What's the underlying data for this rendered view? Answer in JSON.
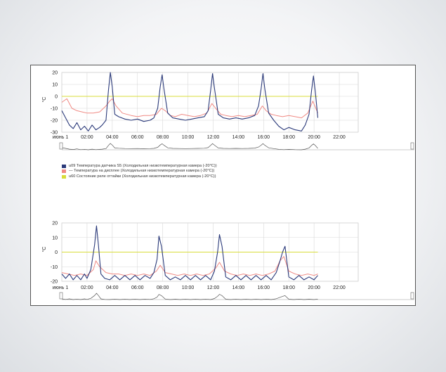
{
  "colors": {
    "sensor": "#2b3a7a",
    "display": "#f08a84",
    "relay": "#d8dc3a",
    "grid": "#d8d8d8",
    "nav": "#555555"
  },
  "legend": [
    {
      "key": "sensor",
      "label": "u09 Температура датчика S5 (Холодильная низкотемпературная камера (-20°C))"
    },
    {
      "key": "display",
      "label": "— Температура на дисплее (Холодильная низкотемпературная камера (-20°C))"
    },
    {
      "key": "relay",
      "label": "u60 Состояние реле оттайки (Холодильная низкотемпературная камера (-20°C))"
    }
  ],
  "chart_data": [
    {
      "type": "line",
      "ylabel": "°C",
      "ylim": [
        -30,
        20
      ],
      "yticks": [
        "20",
        "10",
        "0",
        "-10",
        "-20",
        "-30"
      ],
      "xlim": [
        0,
        23.5
      ],
      "xticks": [
        {
          "x": 0,
          "label": "июнь 1"
        },
        {
          "x": 2,
          "label": "02:00"
        },
        {
          "x": 4,
          "label": "04:00"
        },
        {
          "x": 6,
          "label": "06:00"
        },
        {
          "x": 8,
          "label": "08:00"
        },
        {
          "x": 10,
          "label": "10:00"
        },
        {
          "x": 12,
          "label": "12:00"
        },
        {
          "x": 14,
          "label": "14:00"
        },
        {
          "x": 16,
          "label": "16:00"
        },
        {
          "x": 18,
          "label": "18:00"
        },
        {
          "x": 20,
          "label": "20:00"
        },
        {
          "x": 22,
          "label": "22:00"
        }
      ],
      "series": [
        {
          "key": "sensor",
          "x": [
            0,
            0.3,
            0.6,
            0.9,
            1.2,
            1.5,
            1.8,
            2.1,
            2.4,
            2.7,
            3.0,
            3.2,
            3.5,
            3.7,
            3.85,
            4.0,
            4.2,
            4.5,
            5.0,
            5.5,
            6.0,
            6.5,
            7.0,
            7.3,
            7.6,
            7.8,
            7.95,
            8.1,
            8.4,
            8.8,
            9.3,
            9.8,
            10.3,
            10.8,
            11.3,
            11.6,
            11.8,
            11.95,
            12.1,
            12.4,
            12.8,
            13.3,
            13.8,
            14.3,
            14.8,
            15.3,
            15.6,
            15.8,
            15.95,
            16.1,
            16.4,
            16.8,
            17.2,
            17.6,
            18.0,
            18.5,
            19.0,
            19.3,
            19.6,
            19.8,
            19.95,
            20.1,
            20.3
          ],
          "y": [
            -12,
            -18,
            -24,
            -27,
            -22,
            -28,
            -25,
            -29,
            -24,
            -28,
            -26,
            -24,
            -20,
            5,
            20,
            8,
            -15,
            -17,
            -19,
            -20,
            -19,
            -21,
            -20,
            -18,
            -10,
            8,
            18,
            6,
            -14,
            -18,
            -19,
            -20,
            -19,
            -18,
            -17,
            -12,
            5,
            19,
            7,
            -15,
            -18,
            -19,
            -18,
            -19,
            -18,
            -16,
            -8,
            6,
            19,
            6,
            -14,
            -20,
            -25,
            -28,
            -26,
            -28,
            -29,
            -24,
            -15,
            5,
            17,
            4,
            -18
          ]
        },
        {
          "key": "display",
          "x": [
            0,
            0.4,
            0.8,
            1.2,
            1.6,
            2.0,
            2.5,
            3.0,
            3.5,
            3.8,
            4.0,
            4.3,
            4.8,
            5.5,
            6.0,
            6.5,
            7.0,
            7.5,
            7.9,
            8.2,
            8.6,
            9.0,
            9.5,
            10.0,
            10.5,
            11.0,
            11.5,
            11.9,
            12.2,
            12.6,
            13.0,
            13.5,
            14.0,
            14.5,
            15.0,
            15.5,
            15.9,
            16.2,
            16.6,
            17.0,
            17.5,
            18.0,
            18.5,
            19.0,
            19.5,
            19.9,
            20.3
          ],
          "y": [
            -5,
            -2,
            -10,
            -12,
            -13,
            -14,
            -14,
            -13,
            -8,
            -4,
            -2,
            -8,
            -14,
            -16,
            -17,
            -16,
            -16,
            -15,
            -10,
            -12,
            -16,
            -17,
            -15,
            -16,
            -17,
            -16,
            -14,
            -6,
            -10,
            -15,
            -16,
            -17,
            -16,
            -17,
            -16,
            -15,
            -8,
            -12,
            -15,
            -16,
            -17,
            -16,
            -17,
            -18,
            -14,
            -4,
            -14
          ]
        },
        {
          "key": "relay",
          "x": [
            0,
            3.5,
            4.1,
            7.5,
            8.1,
            11.5,
            12.1,
            15.5,
            16.1,
            19.5,
            20.1,
            20.3
          ],
          "y": [
            0,
            0,
            0,
            0,
            0,
            0,
            0,
            0,
            0,
            0,
            0,
            0
          ]
        }
      ]
    },
    {
      "type": "line",
      "ylabel": "°C",
      "ylim": [
        -20,
        20
      ],
      "yticks": [
        "20",
        "10",
        "0",
        "-10",
        "-20"
      ],
      "xlim": [
        0,
        23.5
      ],
      "xticks": [
        {
          "x": 0,
          "label": "июнь 1"
        },
        {
          "x": 2,
          "label": "02:00"
        },
        {
          "x": 4,
          "label": "04:00"
        },
        {
          "x": 6,
          "label": "06:00"
        },
        {
          "x": 8,
          "label": "08:00"
        },
        {
          "x": 10,
          "label": "10:00"
        },
        {
          "x": 12,
          "label": "12:00"
        },
        {
          "x": 14,
          "label": "14:00"
        },
        {
          "x": 16,
          "label": "16:00"
        },
        {
          "x": 18,
          "label": "18:00"
        },
        {
          "x": 20,
          "label": "20:00"
        },
        {
          "x": 22,
          "label": "22:00"
        }
      ],
      "series": [
        {
          "key": "sensor",
          "x": [
            0,
            0.3,
            0.6,
            0.9,
            1.2,
            1.5,
            1.8,
            2.0,
            2.3,
            2.6,
            2.75,
            2.9,
            3.1,
            3.4,
            3.8,
            4.2,
            4.6,
            5.0,
            5.4,
            5.8,
            6.2,
            6.6,
            7.0,
            7.3,
            7.55,
            7.7,
            7.9,
            8.2,
            8.6,
            9.0,
            9.4,
            9.8,
            10.2,
            10.6,
            11.0,
            11.4,
            11.8,
            12.1,
            12.35,
            12.5,
            12.7,
            13.0,
            13.4,
            13.8,
            14.2,
            14.6,
            15.0,
            15.4,
            15.8,
            16.2,
            16.6,
            17.0,
            17.3,
            17.5,
            17.7,
            18.0,
            18.4,
            18.8,
            19.2,
            19.6,
            20.0,
            20.3
          ],
          "y": [
            -15,
            -18,
            -15,
            -19,
            -16,
            -19,
            -15,
            -18,
            -12,
            5,
            18,
            5,
            -15,
            -18,
            -19,
            -16,
            -19,
            -16,
            -19,
            -16,
            -19,
            -16,
            -18,
            -14,
            -5,
            11,
            4,
            -16,
            -19,
            -17,
            -19,
            -16,
            -19,
            -16,
            -19,
            -16,
            -19,
            -13,
            0,
            12,
            4,
            -17,
            -19,
            -16,
            -19,
            -16,
            -19,
            -16,
            -19,
            -16,
            -19,
            -14,
            -6,
            0,
            4,
            -17,
            -19,
            -16,
            -19,
            -17,
            -19,
            -16
          ]
        },
        {
          "key": "display",
          "x": [
            0,
            0.5,
            1.0,
            1.5,
            2.0,
            2.5,
            2.7,
            3.0,
            3.5,
            4.0,
            4.5,
            5.0,
            5.5,
            6.0,
            6.5,
            7.0,
            7.5,
            7.8,
            8.2,
            8.7,
            9.2,
            9.7,
            10.2,
            10.7,
            11.2,
            11.7,
            12.2,
            12.5,
            12.9,
            13.4,
            13.9,
            14.4,
            14.9,
            15.4,
            15.9,
            16.4,
            16.9,
            17.3,
            17.6,
            18.0,
            18.5,
            19.0,
            19.5,
            20.0,
            20.3
          ],
          "y": [
            -14,
            -15,
            -16,
            -15,
            -16,
            -12,
            -6,
            -10,
            -14,
            -15,
            -15,
            -16,
            -15,
            -16,
            -15,
            -16,
            -13,
            -9,
            -14,
            -15,
            -16,
            -15,
            -16,
            -15,
            -16,
            -15,
            -11,
            -7,
            -13,
            -15,
            -16,
            -15,
            -16,
            -15,
            -16,
            -15,
            -13,
            -6,
            -3,
            -13,
            -15,
            -16,
            -15,
            -16,
            -15
          ]
        },
        {
          "key": "relay",
          "x": [
            0,
            2.4,
            2.9,
            7.3,
            7.8,
            12.0,
            12.5,
            17.0,
            17.5,
            20.3
          ],
          "y": [
            0,
            0,
            0,
            0,
            0,
            0,
            0,
            0,
            0,
            0
          ]
        }
      ]
    }
  ]
}
